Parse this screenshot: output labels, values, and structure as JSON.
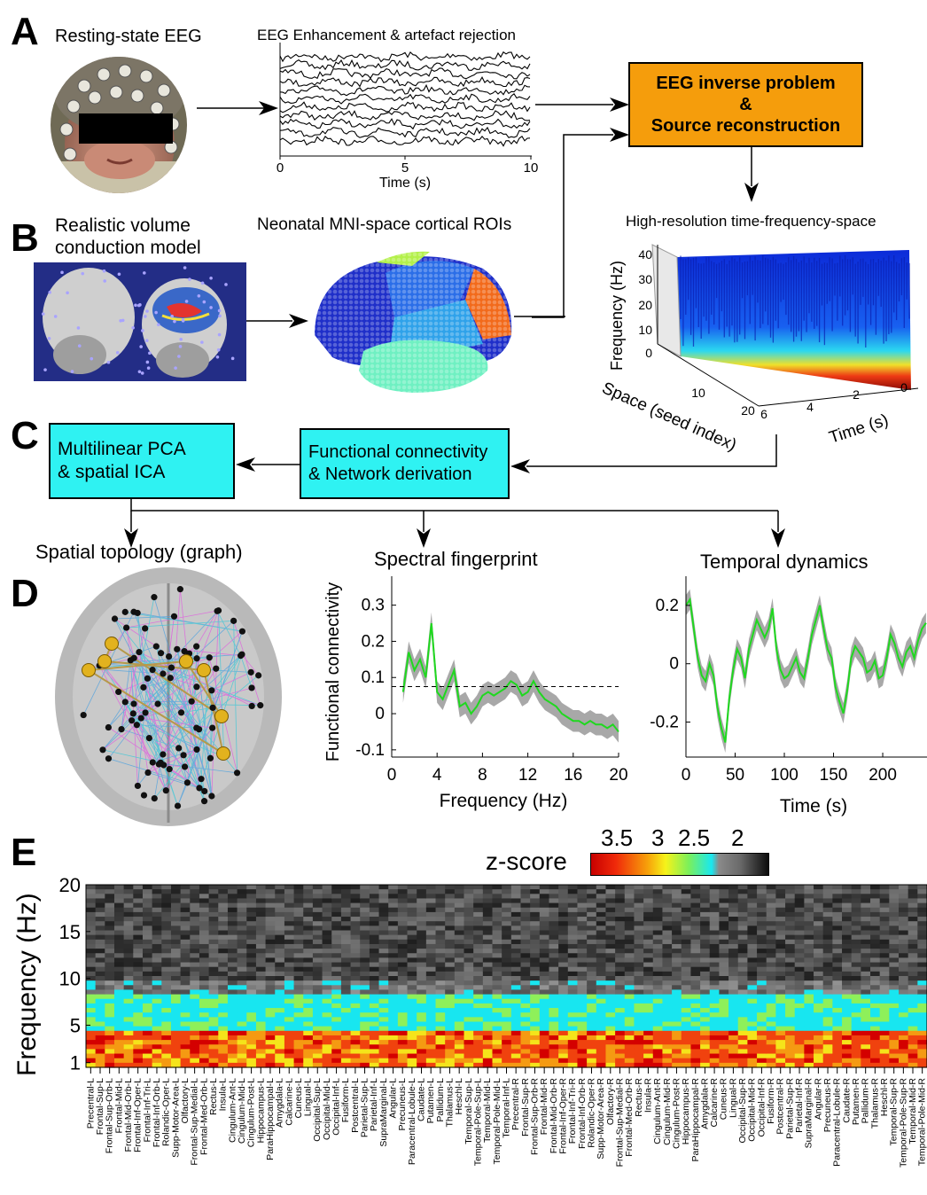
{
  "panels": {
    "a": "A",
    "b": "B",
    "c": "C",
    "d": "D",
    "e": "E"
  },
  "panelA": {
    "title": "Resting-state EEG",
    "eeg_title": "EEG Enhancement & artefact rejection",
    "eeg_ticks": [
      "0",
      "5",
      "10"
    ],
    "eeg_xlabel": "Time (s)",
    "box_line1": "EEG inverse problem",
    "box_line2": "&",
    "box_line3": "Source reconstruction"
  },
  "panelB": {
    "title_line1": "Realistic volume",
    "title_line2": "conduction model",
    "roi_title": "Neonatal MNI-space cortical ROIs",
    "tfs_title": "High-resolution time-frequency-space",
    "tfs_zlabel": "Frequency (Hz)",
    "tfs_z_ticks": [
      "40",
      "30",
      "20",
      "10",
      "0"
    ],
    "tfs_space_label": "Space (seed index)",
    "tfs_space_ticks": [
      "10",
      "20"
    ],
    "tfs_time_label": "Time (s)",
    "tfs_time_ticks": [
      "6",
      "4",
      "2",
      "0"
    ]
  },
  "panelC": {
    "box1_line1": "Multilinear PCA",
    "box1_line2": "& spatial ICA",
    "box2_line1": "Functional connectivity",
    "box2_line2": "& Network derivation"
  },
  "panelD": {
    "graph_title": "Spatial topology (graph)",
    "spectral_title": "Spectral fingerprint",
    "temporal_title": "Temporal dynamics"
  },
  "panelE": {
    "colorbar_label": "z-score",
    "colorbar_ticks": [
      "3.5",
      "3",
      "2.5",
      "2"
    ],
    "ylabel": "Frequency (Hz)",
    "y_ticks": [
      "20",
      "15",
      "10",
      "5",
      "1"
    ],
    "regions": [
      "Precentral-L",
      "Frontal-Sup-L",
      "Frontal-Sup-Orb-L",
      "Frontal-Mid-L",
      "Frontal-Mid-Orb-L",
      "Frontal-Inf-Oper-L",
      "Frontal-Inf-Tri-L",
      "Frontal-Inf-Orb-L",
      "Rolandic-Oper-L",
      "Supp-Motor-Area-L",
      "Olfactory-L",
      "Frontal-Sup-Medial-L",
      "Frontal-Med-Orb-L",
      "Rectus-L",
      "Insula-L",
      "Cingulum-Ant-L",
      "Cingulum-Mid-L",
      "Cingulum-Post-L",
      "Hippocampus-L",
      "ParaHippocampal-L",
      "Amygdala-L",
      "Calcarine-L",
      "Cuneus-L",
      "Lingual-L",
      "Occipital-Sup-L",
      "Occipital-Mid-L",
      "Occipital-Inf-L",
      "Fusiform-L",
      "Postcentral-L",
      "Parietal-Sup-L",
      "Parietal-Inf-L",
      "SupraMarginal-L",
      "Angular-L",
      "Precuneus-L",
      "Paracentral-Lobule-L",
      "Caudate-L",
      "Putamen-L",
      "Pallidum-L",
      "Thalamus-L",
      "Heschl-L",
      "Temporal-Sup-L",
      "Temporal-Pole-Sup-L",
      "Temporal-Mid-L",
      "Temporal-Pole-Mid-L",
      "Temporal-Inf-L",
      "Precentral-R",
      "Frontal-Sup-R",
      "Frontal-Sup-Orb-R",
      "Frontal-Mid-R",
      "Frontal-Mid-Orb-R",
      "Frontal-Inf-Oper-R",
      "Frontal-Inf-Tri-R",
      "Frontal-Inf-Orb-R",
      "Rolandic-Oper-R",
      "Supp-Motor-Area-R",
      "Olfactory-R",
      "Frontal-Sup-Medial-R",
      "Frontal-Med-Orb-R",
      "Rectus-R",
      "Insula-R",
      "Cingulum-Ant-R",
      "Cingulum-Mid-R",
      "Cingulum-Post-R",
      "Hippocampus-R",
      "ParaHippocampal-R",
      "Amygdala-R",
      "Calcarine-R",
      "Cuneus-R",
      "Lingual-R",
      "Occipital-Sup-R",
      "Occipital-Mid-R",
      "Occipital-Inf-R",
      "Fusiform-R",
      "Postcentral-R",
      "Parietal-Sup-R",
      "Parietal-Inf-R",
      "SupraMarginal-R",
      "Angular-R",
      "Precuneus-R",
      "Paracentral-Lobule-R",
      "Caudate-R",
      "Putamen-R",
      "Pallidum-R",
      "Thalamus-R",
      "Heschl-R",
      "Temporal-Sup-R",
      "Temporal-Pole-Sup-R",
      "Temporal-Mid-R",
      "Temporal-Pole-Mid-R"
    ]
  },
  "chart_data": [
    {
      "type": "line",
      "xlabel": "Frequency (Hz)",
      "ylabel": "Functional connectivity",
      "xlim": [
        0,
        20
      ],
      "ylim": [
        -0.12,
        0.38
      ],
      "x_ticks": [
        0,
        4,
        8,
        12,
        16,
        20
      ],
      "y_ticks": [
        0.3,
        0.2,
        0.1,
        0,
        -0.1
      ],
      "threshold": 0.075,
      "x": [
        1,
        1.5,
        2,
        2.5,
        3,
        3.5,
        4,
        4.5,
        5,
        5.5,
        6,
        6.5,
        7,
        7.5,
        8,
        8.5,
        9,
        9.5,
        10,
        10.5,
        11,
        11.5,
        12,
        12.5,
        13,
        13.5,
        14,
        14.5,
        15,
        15.5,
        16,
        16.5,
        17,
        17.5,
        18,
        18.5,
        19,
        19.5,
        20
      ],
      "values": [
        0.06,
        0.17,
        0.12,
        0.15,
        0.1,
        0.25,
        0.06,
        0.04,
        0.08,
        0.12,
        0.02,
        0.03,
        0,
        0.02,
        0.05,
        0.06,
        0.05,
        0.06,
        0.07,
        0.09,
        0.08,
        0.05,
        0.06,
        0.09,
        0.06,
        0.04,
        0.03,
        0.02,
        0.0,
        -0.01,
        -0.02,
        -0.02,
        -0.03,
        -0.02,
        -0.03,
        -0.03,
        -0.04,
        -0.03,
        -0.05
      ],
      "band": 0.03
    },
    {
      "type": "line",
      "xlabel": "Time (s)",
      "xlim": [
        0,
        245
      ],
      "ylim": [
        -0.32,
        0.3
      ],
      "x_ticks": [
        0,
        50,
        100,
        150,
        200
      ],
      "y_ticks": [
        0.2,
        0,
        -0.2
      ],
      "x": [
        0,
        4,
        8,
        12,
        16,
        20,
        24,
        28,
        32,
        36,
        40,
        44,
        48,
        52,
        56,
        60,
        64,
        68,
        72,
        76,
        80,
        84,
        88,
        92,
        96,
        100,
        104,
        108,
        112,
        116,
        120,
        124,
        128,
        132,
        136,
        140,
        144,
        148,
        152,
        156,
        160,
        164,
        168,
        172,
        176,
        180,
        184,
        188,
        192,
        196,
        200,
        204,
        208,
        212,
        216,
        220,
        224,
        228,
        232,
        236,
        240,
        244
      ],
      "values": [
        0.2,
        0.22,
        0.12,
        0.02,
        -0.04,
        -0.06,
        0.0,
        -0.04,
        -0.15,
        -0.22,
        -0.27,
        -0.12,
        -0.02,
        0.05,
        0.02,
        -0.05,
        0.05,
        0.1,
        0.15,
        0.12,
        0.09,
        0.12,
        0.19,
        0.05,
        -0.02,
        -0.05,
        -0.04,
        -0.01,
        0.02,
        -0.03,
        -0.05,
        0.02,
        0.1,
        0.15,
        0.2,
        0.12,
        0.05,
        0.02,
        -0.08,
        -0.13,
        -0.17,
        -0.09,
        0.02,
        0.06,
        0.04,
        0.02,
        -0.03,
        -0.02,
        0.01,
        -0.05,
        -0.04,
        0.02,
        0.1,
        0.07,
        0.02,
        -0.01,
        0.04,
        0.06,
        0.02,
        0.08,
        0.12,
        0.14
      ],
      "band": 0.035
    }
  ],
  "colors": {
    "orange_box": "#f59d0c",
    "cyan_box": "#2ff2f2",
    "green_line": "#1fd81f",
    "grey_band": "#a8a8a8"
  }
}
